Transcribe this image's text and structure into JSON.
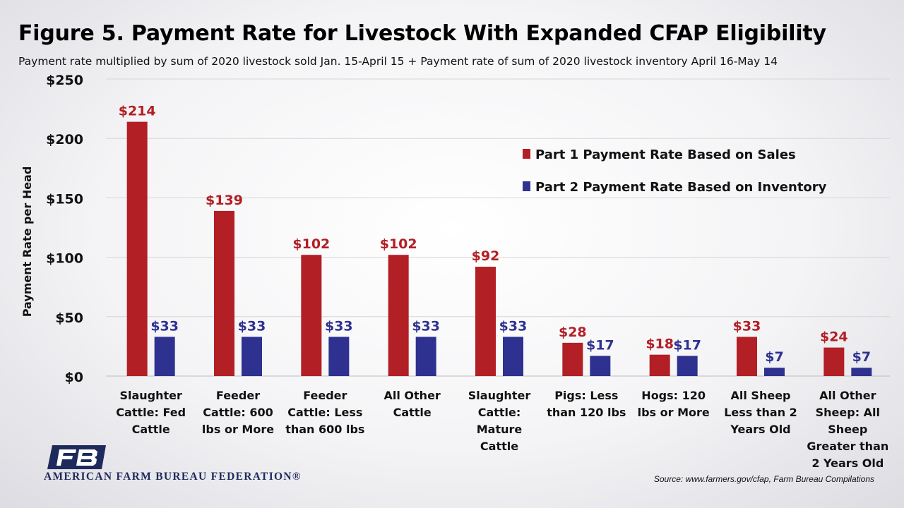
{
  "title": "Figure 5. Payment Rate for Livestock With Expanded CFAP Eligibility",
  "subtitle": "Payment rate multiplied by sum of 2020 livestock sold Jan. 15-April 15 + Payment rate of sum of 2020 livestock inventory April 16-May 14",
  "organization": "AMERICAN FARM BUREAU FEDERATION®",
  "logo_text": "FB",
  "source": "Source: www.farmers.gov/cfap, Farm Bureau Compilations",
  "colors": {
    "part1": "#b21f24",
    "part2": "#2e3190",
    "org": "#1f2a5c"
  },
  "chart_data": {
    "type": "bar",
    "ylabel": "Payment Rate per Head",
    "ylim": [
      0,
      250
    ],
    "y_ticks": [
      {
        "value": 0,
        "label": "$0"
      },
      {
        "value": 50,
        "label": "$50"
      },
      {
        "value": 100,
        "label": "$100"
      },
      {
        "value": 150,
        "label": "$150"
      },
      {
        "value": 200,
        "label": "$200"
      },
      {
        "value": 250,
        "label": "$250"
      }
    ],
    "grid": true,
    "legend_position": "top-right",
    "categories": [
      [
        "Slaughter",
        "Cattle: Fed",
        "Cattle"
      ],
      [
        "Feeder",
        "Cattle: 600",
        "lbs or More"
      ],
      [
        "Feeder",
        "Cattle: Less",
        "than 600 lbs"
      ],
      [
        "All Other",
        "Cattle"
      ],
      [
        "Slaughter",
        "Cattle:",
        "Mature",
        "Cattle"
      ],
      [
        "Pigs: Less",
        "than 120 lbs"
      ],
      [
        "Hogs: 120",
        "lbs or More"
      ],
      [
        "All Sheep",
        "Less than 2",
        "Years Old"
      ],
      [
        "All Other",
        "Sheep: All",
        "Sheep",
        "Greater than",
        "2 Years Old"
      ]
    ],
    "series": [
      {
        "name": "Part 1 Payment Rate Based on Sales",
        "color": "#b21f24",
        "values": [
          214,
          139,
          102,
          102,
          92,
          28,
          18,
          33,
          24
        ],
        "labels": [
          "$214",
          "$139",
          "$102",
          "$102",
          "$92",
          "$28",
          "$18",
          "$33",
          "$24"
        ]
      },
      {
        "name": "Part 2 Payment Rate Based on Inventory",
        "color": "#2e3190",
        "values": [
          33,
          33,
          33,
          33,
          33,
          17,
          17,
          7,
          7
        ],
        "labels": [
          "$33",
          "$33",
          "$33",
          "$33",
          "$33",
          "$17",
          "$17",
          "$7",
          "$7"
        ]
      }
    ]
  }
}
